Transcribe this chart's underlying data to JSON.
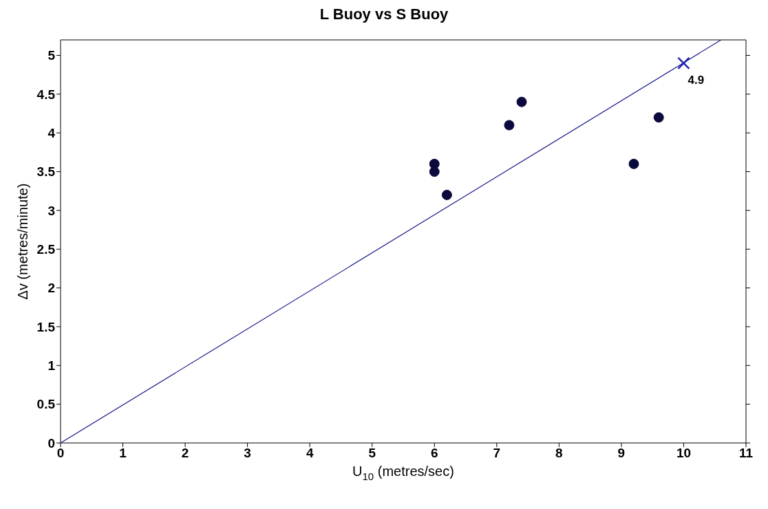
{
  "chart_data": {
    "type": "scatter",
    "title": "L Buoy vs S Buoy",
    "xlabel": "U$_{10}$  (metres/sec)",
    "ylabel": "Δv  (metres/minute)",
    "xlim": [
      0,
      11
    ],
    "xticks": [
      0,
      1,
      2,
      3,
      4,
      5,
      6,
      7,
      8,
      9,
      10,
      11
    ],
    "ylim": [
      0,
      5.2
    ],
    "yticks": [
      0,
      0.5,
      1,
      1.5,
      2,
      2.5,
      3,
      3.5,
      4,
      4.5,
      5
    ],
    "grid": false,
    "legend": false,
    "series": [
      {
        "color": "#0a0a3c",
        "marker": "circle",
        "x": [
          6,
          6,
          6.2,
          7.2,
          7.4,
          9.2,
          9.6
        ],
        "values": [
          3.6,
          3.5,
          3.2,
          4.1,
          4.4,
          3.6,
          4.2
        ]
      },
      {
        "type": "line",
        "color": "#1c1c8c",
        "marker": "none",
        "x": [
          0,
          10.6
        ],
        "values": [
          0,
          5.2
        ]
      },
      {
        "type": "scatter",
        "color": "#2020b0",
        "marker": "cross",
        "x": [
          10
        ],
        "values": [
          4.9
        ]
      }
    ],
    "annotations": [
      {
        "text": "4.9",
        "x": 10,
        "y": 4.9
      }
    ]
  }
}
